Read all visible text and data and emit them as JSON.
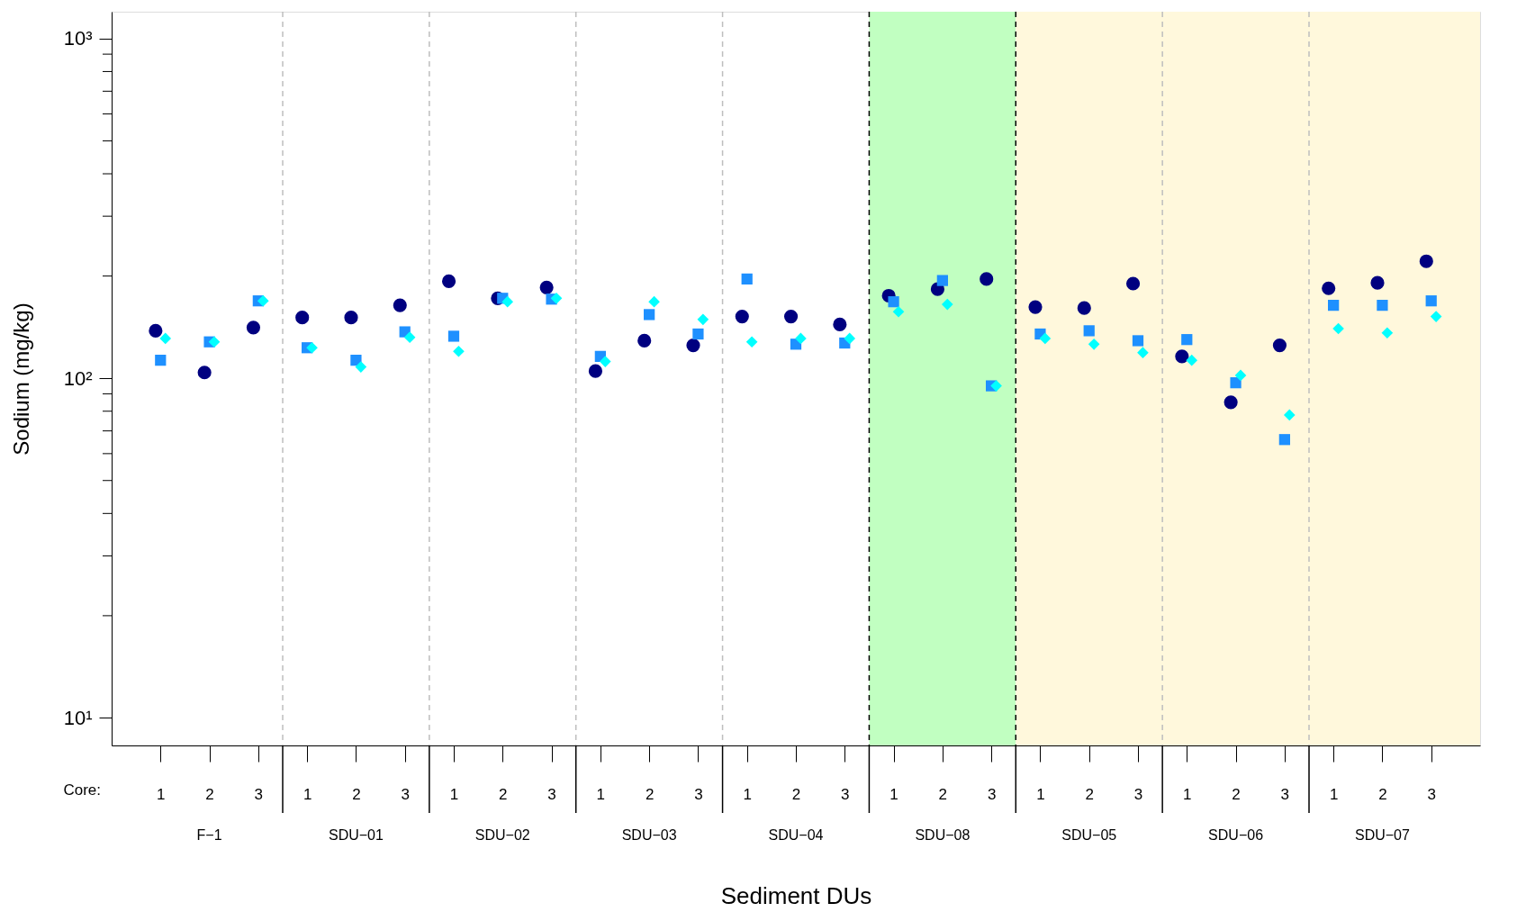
{
  "chart_data": {
    "type": "scatter",
    "xlabel": "Sediment DUs",
    "ylabel": "Sodium (mg/kg)",
    "log": "y",
    "ylim": [
      8.3,
      1200
    ],
    "yticks": [
      {
        "value": 10,
        "label": "10¹"
      },
      {
        "value": 20,
        "label": null
      },
      {
        "value": 30,
        "label": null
      },
      {
        "value": 40,
        "label": null
      },
      {
        "value": 50,
        "label": null
      },
      {
        "value": 60,
        "label": null
      },
      {
        "value": 70,
        "label": null
      },
      {
        "value": 80,
        "label": null
      },
      {
        "value": 90,
        "label": null
      },
      {
        "value": 100,
        "label": "10²"
      },
      {
        "value": 200,
        "label": null
      },
      {
        "value": 300,
        "label": null
      },
      {
        "value": 400,
        "label": null
      },
      {
        "value": 500,
        "label": null
      },
      {
        "value": 600,
        "label": null
      },
      {
        "value": 700,
        "label": null
      },
      {
        "value": 800,
        "label": null
      },
      {
        "value": 900,
        "label": null
      },
      {
        "value": 1000,
        "label": "10³"
      }
    ],
    "categories": [
      "1",
      "2",
      "3",
      "1",
      "2",
      "3",
      "1",
      "2",
      "3",
      "1",
      "2",
      "3",
      "1",
      "2",
      "3",
      "1",
      "2",
      "3",
      "1",
      "2",
      "3",
      "1",
      "2",
      "3",
      "1",
      "2",
      "3"
    ],
    "grid": false,
    "series": [
      {
        "color": "#000080",
        "marker": "circle",
        "values": [
          138,
          104,
          141,
          151,
          151,
          164,
          193,
          172,
          185,
          105,
          129,
          125,
          152,
          152,
          144,
          175,
          183,
          196,
          162,
          161,
          190,
          116,
          85,
          125,
          184,
          191,
          221
        ]
      },
      {
        "color": "#1e90ff",
        "marker": "square",
        "values": [
          113,
          128,
          169,
          123,
          113,
          137,
          133,
          172,
          171,
          116,
          154,
          135,
          196,
          126,
          127,
          168,
          194,
          95,
          135,
          138,
          129,
          130,
          97,
          66,
          164,
          164,
          169
        ]
      },
      {
        "color": "#00ffff",
        "marker": "diamond",
        "values": [
          131,
          128,
          169,
          123,
          108,
          132,
          120,
          168,
          172,
          112,
          168,
          149,
          128,
          131,
          131,
          157,
          165,
          95,
          131,
          126,
          119,
          113,
          102,
          78,
          140,
          136,
          152
        ]
      }
    ],
    "annotations": [
      "Core:",
      "F−1",
      "SDU−01",
      "SDU−02",
      "SDU−03",
      "SDU−04",
      "SDU−08",
      "SDU−05",
      "SDU−06",
      "SDU−07"
    ]
  }
}
